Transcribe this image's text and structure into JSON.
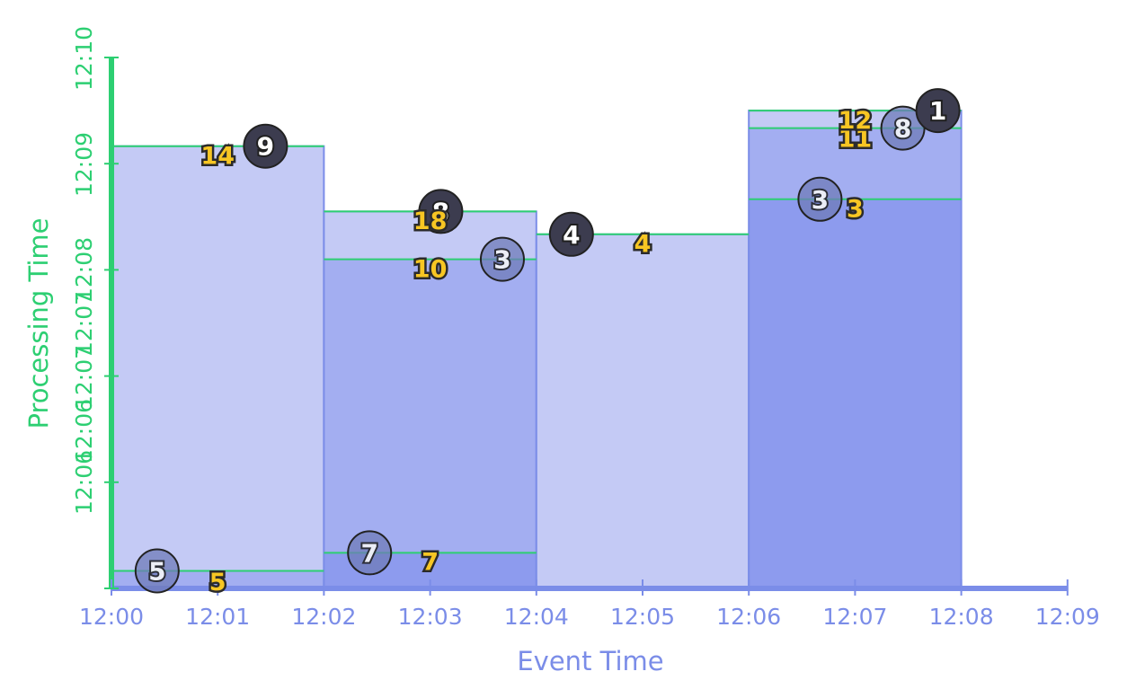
{
  "x_axis": {
    "title": "Event Time",
    "ticks": [
      "12:00",
      "12:01",
      "12:02",
      "12:03",
      "12:04",
      "12:05",
      "12:06",
      "12:07",
      "12:08",
      "12:09"
    ]
  },
  "y_axis": {
    "title": "Processing Time",
    "ticks": [
      "12:06",
      "12:06",
      "12:07",
      "12:07",
      "12:08",
      "12:09",
      "12:10"
    ]
  },
  "colors": {
    "x_axis": "#7b8de8",
    "y_axis": "#2dcf72",
    "pane_light": "#c4caf5",
    "pane_mid": "#a3aef1",
    "pane_dark": "#8d9bee",
    "pane_border": "#7b8de8",
    "trigger_line": "#2dcf72",
    "result_label": "#f7c623",
    "marker_dark": "#3c3c4f"
  },
  "windows": [
    {
      "start": 0,
      "end": 2,
      "top": 8.33,
      "bands": [
        {
          "from": 0,
          "to": 0.33,
          "tone": "mid"
        },
        {
          "from": 0.33,
          "to": 8.33,
          "tone": "light"
        }
      ],
      "triggers": [
        0.33,
        8.33
      ]
    },
    {
      "start": 2,
      "end": 4,
      "top": 7.1,
      "bands": [
        {
          "from": 0,
          "to": 0.67,
          "tone": "dark"
        },
        {
          "from": 0.67,
          "to": 6.2,
          "tone": "mid"
        },
        {
          "from": 6.2,
          "to": 7.1,
          "tone": "light"
        }
      ],
      "triggers": [
        0.67,
        6.2,
        7.1
      ]
    },
    {
      "start": 4,
      "end": 6,
      "top": 6.67,
      "bands": [
        {
          "from": 0,
          "to": 6.67,
          "tone": "light"
        }
      ],
      "triggers": [
        6.67
      ]
    },
    {
      "start": 6,
      "end": 8,
      "top": 9.0,
      "bands": [
        {
          "from": 0,
          "to": 7.33,
          "tone": "dark"
        },
        {
          "from": 7.33,
          "to": 8.67,
          "tone": "mid"
        },
        {
          "from": 8.67,
          "to": 9.0,
          "tone": "light"
        }
      ],
      "triggers": [
        7.33,
        8.67,
        9.0
      ]
    }
  ],
  "markers": [
    {
      "label": "5",
      "x": 0.43,
      "y": 0.33,
      "style": "faded"
    },
    {
      "label": "9",
      "x": 1.45,
      "y": 8.33,
      "style": "dark"
    },
    {
      "label": "7",
      "x": 2.43,
      "y": 0.67,
      "style": "faded"
    },
    {
      "label": "8",
      "x": 3.1,
      "y": 7.1,
      "style": "dark"
    },
    {
      "label": "3",
      "x": 3.68,
      "y": 6.2,
      "style": "faded"
    },
    {
      "label": "4",
      "x": 4.33,
      "y": 6.67,
      "style": "dark"
    },
    {
      "label": "3",
      "x": 6.67,
      "y": 7.33,
      "style": "faded"
    },
    {
      "label": "8",
      "x": 7.45,
      "y": 8.67,
      "style": "faded"
    },
    {
      "label": "1",
      "x": 7.78,
      "y": 9.0,
      "style": "dark"
    }
  ],
  "results": [
    {
      "label": "5",
      "x": 1.0,
      "y": 0.0
    },
    {
      "label": "14",
      "x": 1.0,
      "y": 8.03
    },
    {
      "label": "7",
      "x": 3.0,
      "y": 0.38
    },
    {
      "label": "10",
      "x": 3.0,
      "y": 5.9
    },
    {
      "label": "18",
      "x": 3.0,
      "y": 6.8
    },
    {
      "label": "4",
      "x": 5.0,
      "y": 6.37
    },
    {
      "label": "3",
      "x": 7.0,
      "y": 7.03
    },
    {
      "label": "11",
      "x": 7.0,
      "y": 8.35
    },
    {
      "label": "12",
      "x": 7.0,
      "y": 8.7
    }
  ]
}
